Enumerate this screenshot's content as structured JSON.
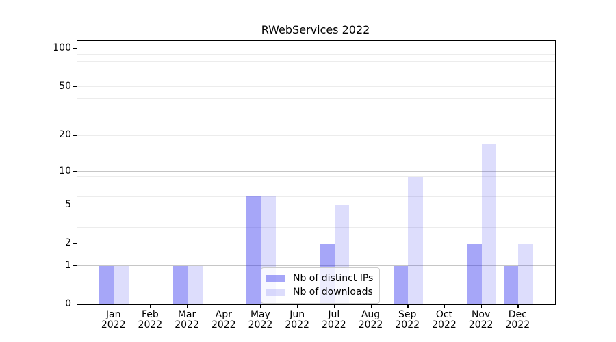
{
  "chart_data": {
    "type": "bar",
    "title": "RWebServices 2022",
    "categories": [
      "Jan",
      "Feb",
      "Mar",
      "Apr",
      "May",
      "Jun",
      "Jul",
      "Aug",
      "Sep",
      "Oct",
      "Nov",
      "Dec"
    ],
    "x_year_label": "2022",
    "series": [
      {
        "name": "Nb of distinct IPs",
        "values": [
          1,
          0,
          1,
          0,
          6,
          0,
          2,
          0,
          1,
          0,
          2,
          1
        ],
        "color": "rgba(42,42,238,0.42)"
      },
      {
        "name": "Nb of downloads",
        "values": [
          1,
          0,
          1,
          0,
          6,
          0,
          5,
          0,
          9,
          0,
          17,
          2
        ],
        "color": "rgba(42,42,238,0.16)"
      }
    ],
    "yscale": "log1p",
    "ylim": [
      0,
      115
    ],
    "yticks": [
      0,
      1,
      2,
      5,
      10,
      20,
      50,
      100
    ],
    "gridlines": {
      "major": [
        1,
        10,
        100
      ],
      "minor": [
        2,
        3,
        4,
        5,
        6,
        7,
        8,
        9,
        20,
        30,
        40,
        50,
        60,
        70,
        80,
        90
      ]
    },
    "grid_on": true,
    "legend_position": "lower-center",
    "colors": {
      "grid_major": "#c6c6c6",
      "grid_minor": "#ececec",
      "axis": "#000000",
      "text": "#000000",
      "legend_border": "#cccccc",
      "legend_bg": "rgba(255,255,255,0.8)"
    }
  }
}
